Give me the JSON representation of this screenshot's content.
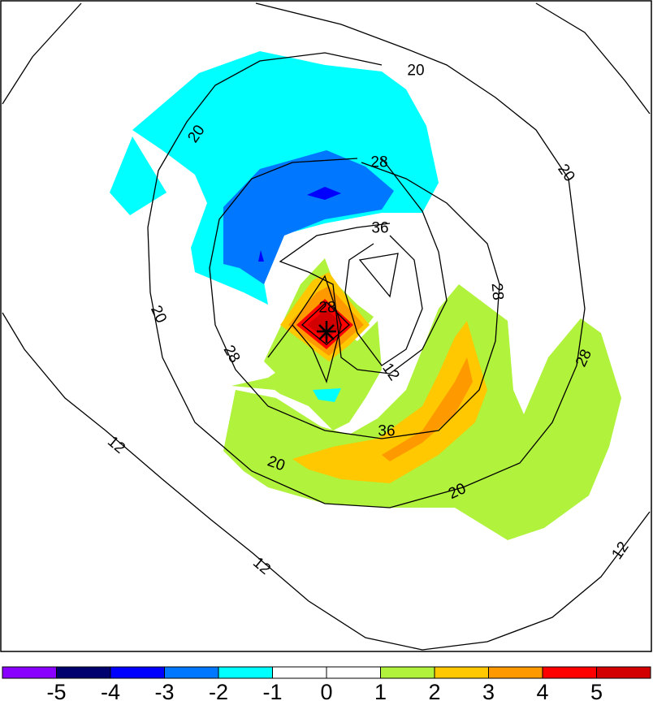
{
  "chart_data": {
    "type": "contour",
    "title": "",
    "xlabel": "",
    "ylabel": "",
    "shaded_field": {
      "levels": [
        -5,
        -4,
        -3,
        -2,
        -1,
        0,
        1,
        2,
        3,
        4,
        5
      ],
      "colors": [
        "#8a00ff",
        "#00006e",
        "#0000ff",
        "#0077ff",
        "#00ffff",
        "#ffffff",
        "#ffffff",
        "#b0f23c",
        "#ffc800",
        "#ff9900",
        "#ff0000",
        "#d20000"
      ],
      "regions": [
        {
          "name": "upper-cyan-band",
          "value_range": [
            -2,
            -1
          ]
        },
        {
          "name": "upper-blue-band",
          "value_range": [
            -3,
            -2
          ]
        },
        {
          "name": "upper-darkblue-spot",
          "value_range": [
            -4,
            -3
          ]
        },
        {
          "name": "lower-green-band",
          "value_range": [
            1,
            2
          ]
        },
        {
          "name": "lower-yellow-band",
          "value_range": [
            2,
            3
          ]
        },
        {
          "name": "lower-orange-strip",
          "value_range": [
            3,
            4
          ]
        },
        {
          "name": "center-red-core",
          "value_range": [
            4,
            5
          ]
        },
        {
          "name": "center-max",
          "value_range": [
            5,
            6
          ]
        }
      ]
    },
    "contour_lines": {
      "levels": [
        12,
        20,
        28,
        36
      ],
      "labels": [
        {
          "text": "20"
        },
        {
          "text": "20"
        },
        {
          "text": "20"
        },
        {
          "text": "20"
        },
        {
          "text": "20"
        },
        {
          "text": "20"
        },
        {
          "text": "28"
        },
        {
          "text": "28"
        },
        {
          "text": "28"
        },
        {
          "text": "28"
        },
        {
          "text": "28"
        },
        {
          "text": "36"
        },
        {
          "text": "36"
        },
        {
          "text": "12"
        },
        {
          "text": "12"
        },
        {
          "text": "12"
        }
      ]
    },
    "center_marker": "plus-cross",
    "colorbar": {
      "orientation": "horizontal",
      "placement": "bottom",
      "tick_labels": [
        "-5",
        "-4",
        "-3",
        "-2",
        "-1",
        "0",
        "1",
        "2",
        "3",
        "4",
        "5"
      ]
    }
  }
}
